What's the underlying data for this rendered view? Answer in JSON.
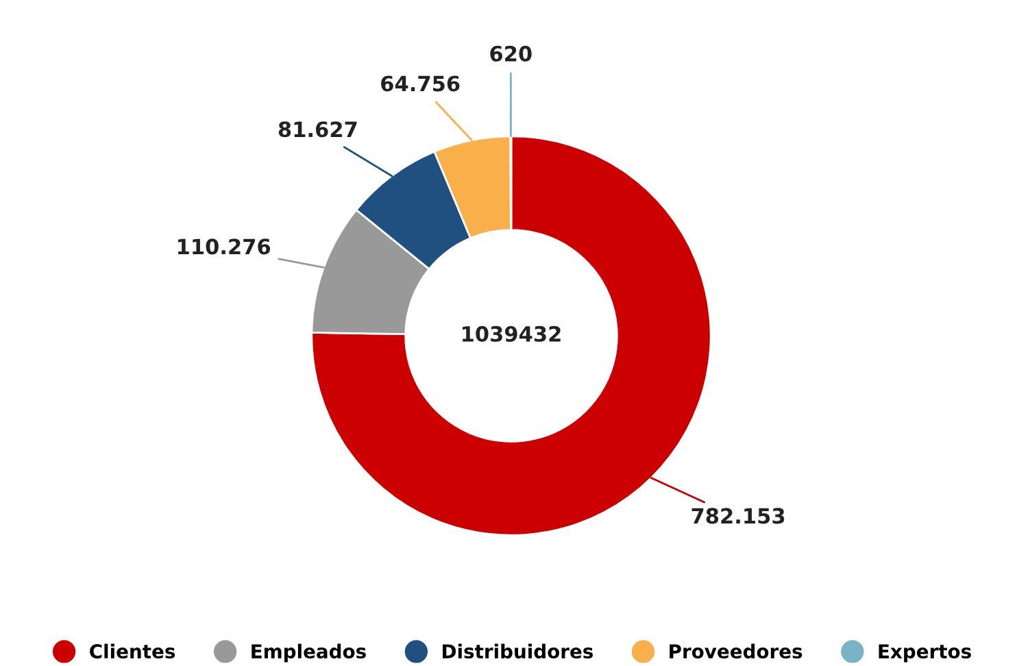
{
  "chart_data": {
    "type": "donut",
    "categories": [
      "Clientes",
      "Empleados",
      "Distribuidores",
      "Proveedores",
      "Expertos"
    ],
    "values": [
      782153,
      110276,
      81627,
      64756,
      620
    ],
    "value_labels": [
      "782.153",
      "110.276",
      "81.627",
      "64.756",
      "620"
    ],
    "colors": [
      "#cc0000",
      "#999999",
      "#1f5080",
      "#f9b04a",
      "#7ab3c5"
    ],
    "annotations": [
      "1039432"
    ],
    "legend": "bottom"
  }
}
